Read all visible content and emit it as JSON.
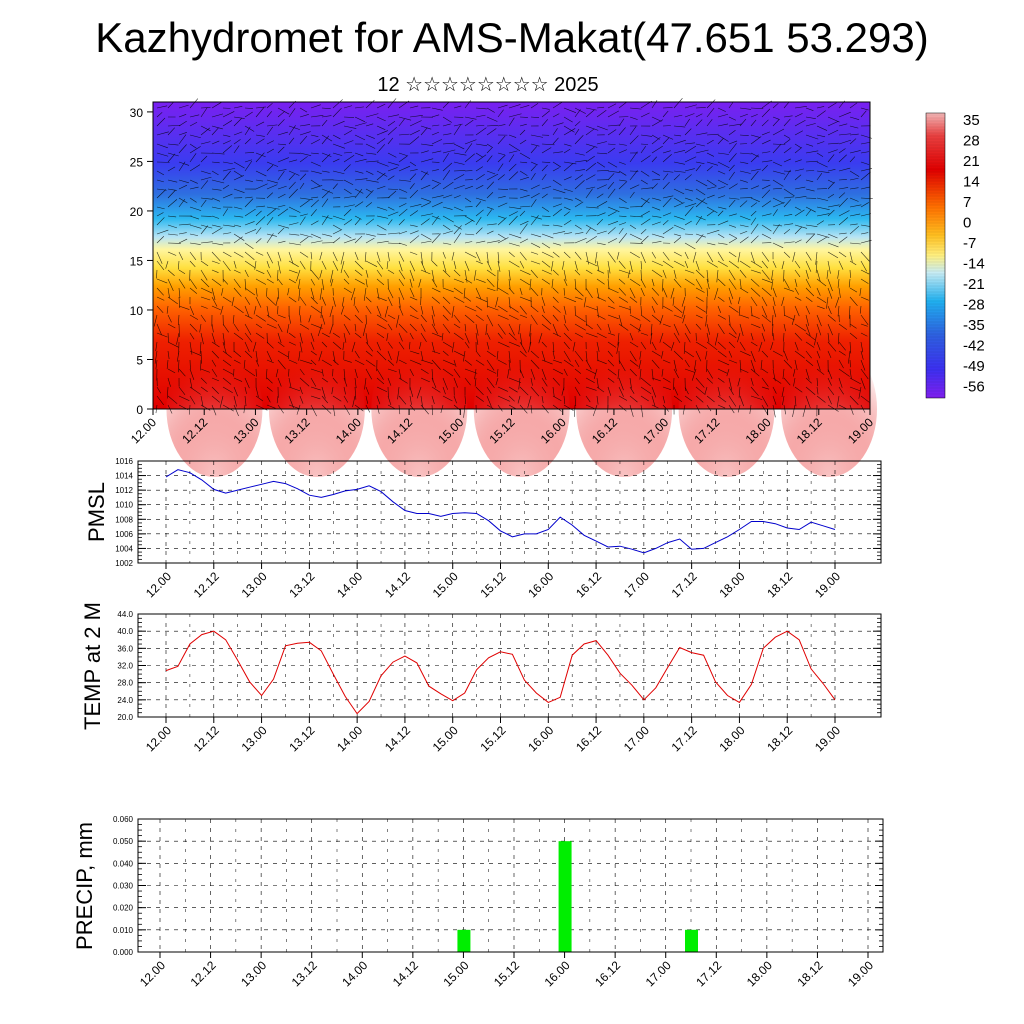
{
  "title": "Kazhydromet for AMS-Makat(47.651 53.293)",
  "subtitle": "12 ☆☆☆☆☆☆☆☆ 2025",
  "time_ticks": [
    "12.00",
    "12.12",
    "13.00",
    "13.12",
    "14.00",
    "14.12",
    "15.00",
    "15.12",
    "16.00",
    "16.12",
    "17.00",
    "17.12",
    "18.00",
    "18.12",
    "19.00"
  ],
  "chart_data": [
    {
      "type": "heatmap",
      "title": "",
      "ylim": [
        0,
        31
      ],
      "yticks": [
        0,
        5,
        10,
        15,
        20,
        25,
        30
      ],
      "colorbar_labels": [
        "35",
        "28",
        "21",
        "14",
        "7",
        "0",
        "-7",
        "-14",
        "-21",
        "-28",
        "-35",
        "-42",
        "-49",
        "-56"
      ],
      "colors": {
        "warm": "#e00000",
        "hot": "#f4a0a0",
        "neutral": "#ffe040",
        "cold": "#2e6fe0",
        "coldest": "#7a20f0"
      }
    },
    {
      "type": "line",
      "ylabel": "PMSL",
      "ylim": [
        1002,
        1016
      ],
      "yticks": [
        "1016",
        "1014",
        "1012",
        "1010",
        "1008",
        "1006",
        "1004",
        "1002"
      ],
      "color": "#0000cc",
      "x_step_hours": 3,
      "values": [
        1013.8,
        1014.8,
        1014.4,
        1013.4,
        1012.1,
        1011.6,
        1012.0,
        1012.4,
        1012.8,
        1013.2,
        1012.9,
        1012.2,
        1011.3,
        1011.0,
        1011.4,
        1011.9,
        1012.1,
        1012.6,
        1011.8,
        1010.4,
        1009.2,
        1008.8,
        1008.8,
        1008.4,
        1008.8,
        1008.9,
        1008.8,
        1007.8,
        1006.4,
        1005.6,
        1006.0,
        1006.0,
        1006.6,
        1008.3,
        1007.2,
        1005.8,
        1005.0,
        1004.2,
        1004.3,
        1003.9,
        1003.4,
        1004.0,
        1004.8,
        1005.3,
        1003.9,
        1004.0,
        1004.8,
        1005.6,
        1006.6,
        1007.7,
        1007.7,
        1007.4,
        1006.8,
        1006.6,
        1007.6,
        1007.1,
        1006.6
      ]
    },
    {
      "type": "line",
      "ylabel": "TEMP at 2 M",
      "ylim": [
        20.0,
        44.0
      ],
      "yticks": [
        "44.0",
        "40.0",
        "36.0",
        "32.0",
        "28.0",
        "24.0",
        "20.0"
      ],
      "color": "#e00000",
      "x_step_hours": 3,
      "values": [
        30.8,
        31.8,
        37.0,
        39.2,
        40.0,
        38.0,
        33.2,
        28.2,
        25.0,
        28.8,
        36.6,
        37.2,
        37.4,
        35.4,
        30.0,
        24.8,
        20.8,
        23.6,
        29.6,
        32.8,
        34.2,
        32.6,
        27.2,
        25.4,
        23.8,
        25.6,
        31.0,
        33.8,
        35.2,
        34.6,
        28.6,
        25.6,
        23.4,
        24.6,
        34.4,
        37.0,
        37.8,
        34.4,
        30.2,
        27.4,
        24.0,
        26.8,
        31.6,
        36.2,
        35.0,
        34.4,
        28.2,
        25.0,
        23.4,
        27.6,
        36.0,
        38.6,
        40.0,
        38.0,
        31.2,
        27.8,
        24.0
      ]
    },
    {
      "type": "bar",
      "ylabel": "PRECIP, mm",
      "ylim": [
        0,
        0.06
      ],
      "yticks": [
        "0.060",
        "0.050",
        "0.040",
        "0.030",
        "0.020",
        "0.010",
        "0.000"
      ],
      "color": "#00ee00",
      "bars": [
        {
          "t_hours": 72,
          "value": 0.01
        },
        {
          "t_hours": 96,
          "value": 0.05
        },
        {
          "t_hours": 126,
          "value": 0.01
        }
      ]
    }
  ]
}
